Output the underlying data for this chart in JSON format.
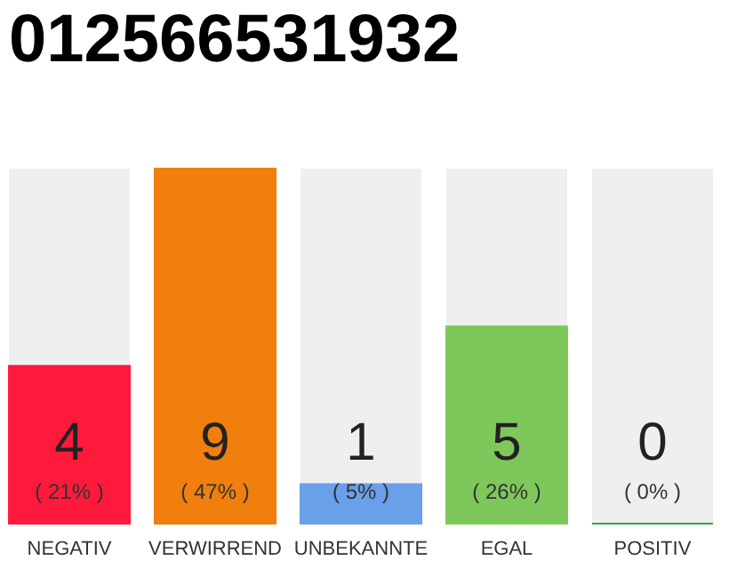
{
  "chart_data": {
    "type": "bar",
    "title": "012566531932",
    "categories": [
      "NEGATIV",
      "VERWIRREND",
      "UNBEKANNTE",
      "EGAL",
      "POSITIV"
    ],
    "values": [
      4,
      9,
      1,
      5,
      0
    ],
    "colors": [
      "#ff1a3c",
      "#f07f0e",
      "#6a9fea",
      "#7ec85b",
      "#2aa84a"
    ],
    "data_labels": true,
    "annotations": [
      "( 21% )",
      "( 47% )",
      "( 5% )",
      "( 26% )",
      "( 0% )"
    ],
    "tick_labels": "x"
  }
}
